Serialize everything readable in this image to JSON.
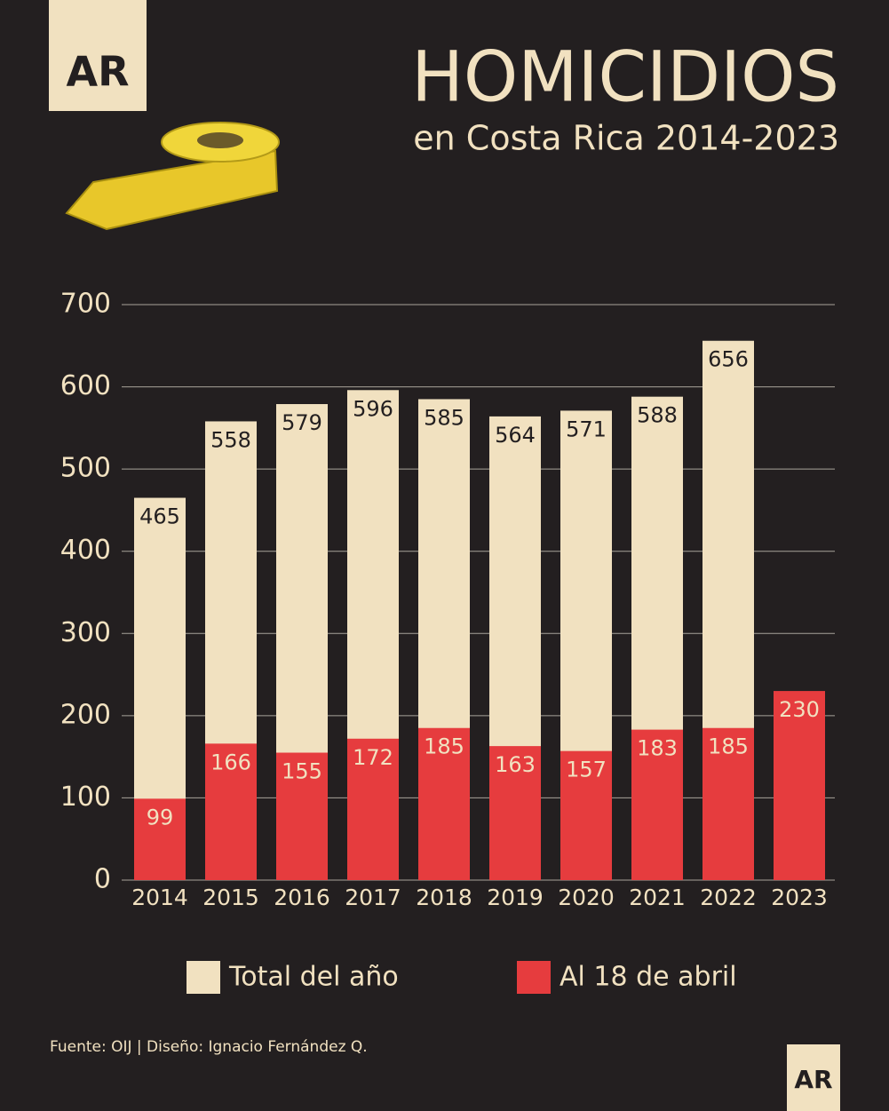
{
  "logo": "AR",
  "chart_data": {
    "type": "bar",
    "title": "HOMICIDIOS",
    "subtitle": "en Costa Rica 2014-2023",
    "categories": [
      "2014",
      "2015",
      "2016",
      "2017",
      "2018",
      "2019",
      "2020",
      "2021",
      "2022",
      "2023"
    ],
    "series": [
      {
        "name": "Total del año",
        "color": "#f1e1c0",
        "values": [
          465,
          558,
          579,
          596,
          585,
          564,
          571,
          588,
          656,
          null
        ]
      },
      {
        "name": "Al 18 de abril",
        "color": "#e63c3e",
        "values": [
          99,
          166,
          155,
          172,
          185,
          163,
          157,
          183,
          185,
          230
        ]
      }
    ],
    "ylim": [
      0,
      700
    ],
    "yticks": [
      0,
      100,
      200,
      300,
      400,
      500,
      600,
      700
    ],
    "grid": true,
    "source": "Fuente: OIJ | Diseño: Ignacio Fernández Q."
  }
}
